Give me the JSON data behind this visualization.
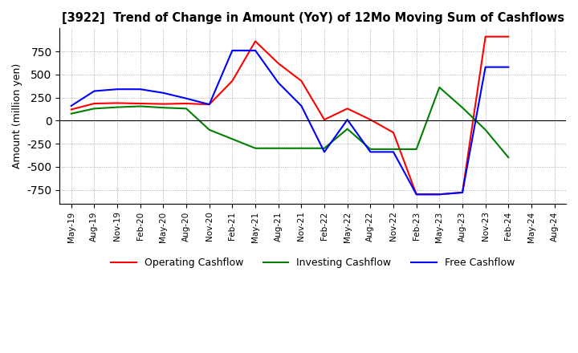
{
  "title": "[3922]  Trend of Change in Amount (YoY) of 12Mo Moving Sum of Cashflows",
  "ylabel": "Amount (million yen)",
  "ylim": [
    -900,
    1000
  ],
  "yticks": [
    -750,
    -500,
    -250,
    0,
    250,
    500,
    750
  ],
  "x_labels": [
    "May-19",
    "Aug-19",
    "Nov-19",
    "Feb-20",
    "May-20",
    "Aug-20",
    "Nov-20",
    "Feb-21",
    "May-21",
    "Aug-21",
    "Nov-21",
    "Feb-22",
    "May-22",
    "Aug-22",
    "Nov-22",
    "Feb-23",
    "May-23",
    "Aug-23",
    "Nov-23",
    "Feb-24",
    "May-24",
    "Aug-24"
  ],
  "operating": [
    120,
    185,
    190,
    185,
    180,
    185,
    175,
    430,
    860,
    620,
    430,
    10,
    130,
    10,
    -130,
    -800,
    -800,
    -780,
    910,
    910,
    null,
    null
  ],
  "investing": [
    75,
    130,
    145,
    155,
    140,
    130,
    -100,
    -200,
    -300,
    -300,
    -300,
    -300,
    -90,
    -310,
    -310,
    -310,
    360,
    140,
    -100,
    -400,
    null,
    null
  ],
  "free": [
    160,
    320,
    340,
    340,
    300,
    240,
    175,
    760,
    760,
    410,
    160,
    -340,
    10,
    -340,
    -340,
    -800,
    -800,
    -780,
    580,
    580,
    null,
    null
  ],
  "operating_color": "#ff0000",
  "investing_color": "#008000",
  "free_color": "#0000ff",
  "legend_labels": [
    "Operating Cashflow",
    "Investing Cashflow",
    "Free Cashflow"
  ]
}
